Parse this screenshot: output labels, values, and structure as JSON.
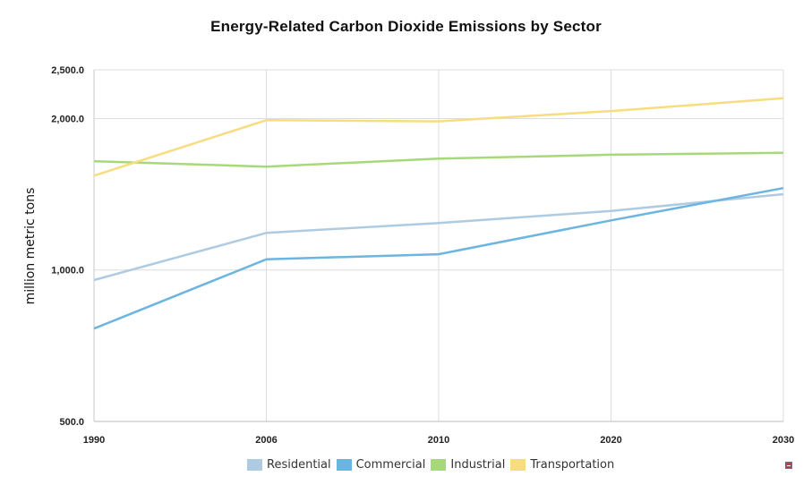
{
  "chart_data": {
    "type": "line",
    "title": "Energy-Related Carbon Dioxide Emissions by Sector",
    "ylabel": "million metric tons",
    "xlabel": "",
    "categories": [
      "1990",
      "2006",
      "2010",
      "2020",
      "2030"
    ],
    "y_ticks": [
      500,
      1000,
      2000,
      2500
    ],
    "y_tick_labels": [
      "500.0",
      "1,000.0",
      "2,000.0",
      "2,500.0"
    ],
    "y_scale": "log",
    "ylim": [
      500,
      2500
    ],
    "grid": true,
    "legend_position": "bottom",
    "series": [
      {
        "name": "Residential",
        "color": "#aecbe2",
        "values": [
          955,
          1185,
          1240,
          1310,
          1415
        ]
      },
      {
        "name": "Commercial",
        "color": "#6bb5e0",
        "values": [
          765,
          1050,
          1075,
          1255,
          1455
        ]
      },
      {
        "name": "Industrial",
        "color": "#a7d97a",
        "values": [
          1645,
          1605,
          1665,
          1695,
          1710
        ]
      },
      {
        "name": "Transportation",
        "color": "#f7dd80",
        "values": [
          1540,
          1985,
          1975,
          2070,
          2195
        ]
      }
    ]
  }
}
